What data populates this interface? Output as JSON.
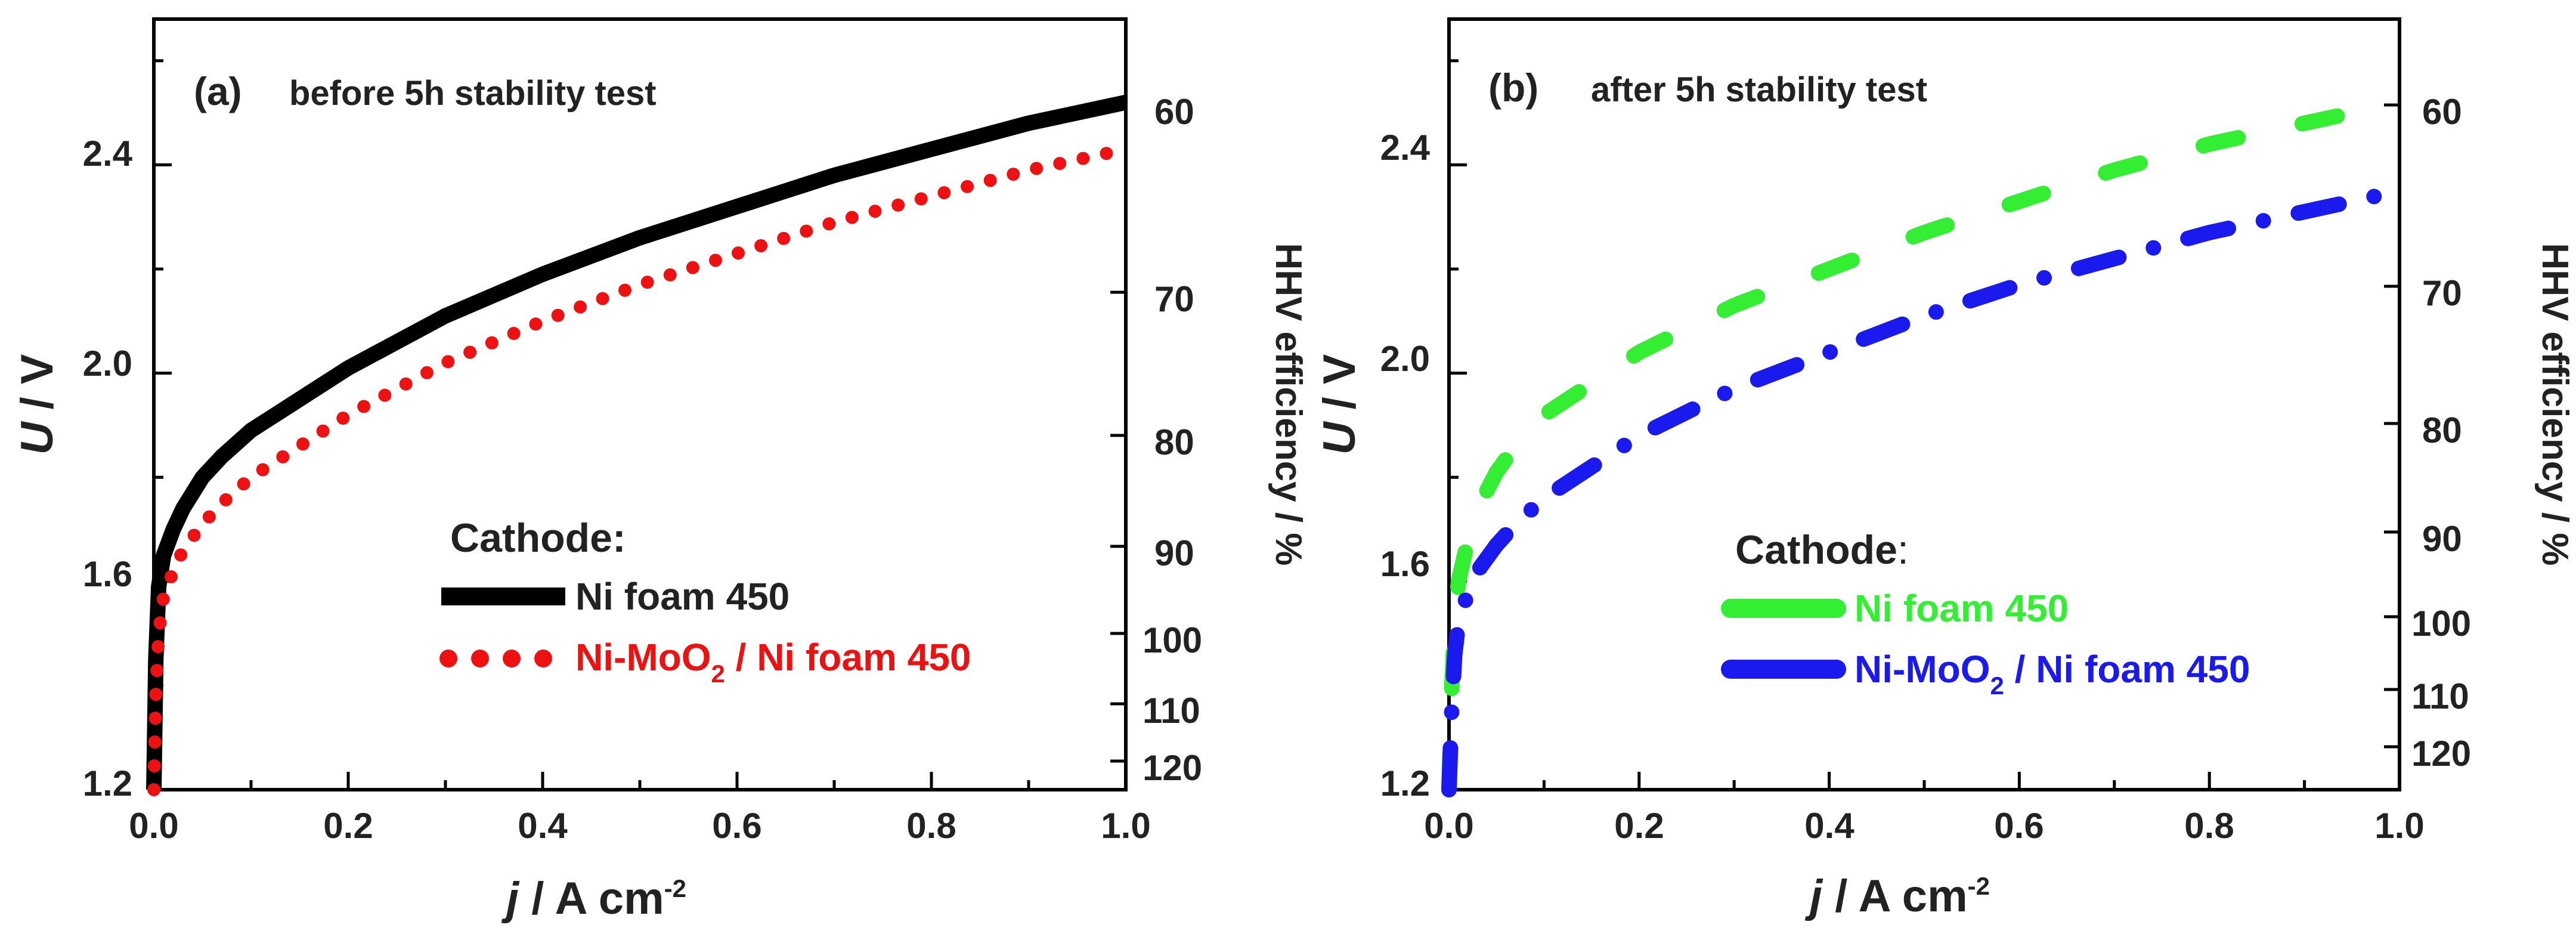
{
  "chart_data": [
    {
      "type": "line",
      "panel": "(a)",
      "title": "before 5h stability test",
      "xlabel": {
        "var": "j",
        "text": " / A cm",
        "exp": "-2"
      },
      "ylabel": {
        "var": "U",
        "text": " / V"
      },
      "y2label": "HHV efficiency  / %",
      "xlim": [
        0,
        1.0
      ],
      "ylim": [
        1.2,
        2.68
      ],
      "xticks": [
        "0.0",
        "0.2",
        "0.4",
        "0.6",
        "0.8",
        "1.0"
      ],
      "yticks": [
        "1.2",
        "1.6",
        "2.0",
        "2.4"
      ],
      "y2ticks": [
        "60",
        "70",
        "80",
        "90",
        "100",
        "110",
        "120"
      ],
      "legend": {
        "title": "Cathode:",
        "position": "center-right",
        "entries": [
          {
            "label": "Ni foam 450"
          },
          {
            "label_main": "Ni-MoO",
            "label_sub": "2",
            "label_rest": " / Ni foam 450"
          }
        ]
      },
      "series": [
        {
          "name": "Ni foam 450",
          "color": "#000000",
          "style": "solid",
          "x": [
            0.0,
            0.002,
            0.005,
            0.01,
            0.02,
            0.03,
            0.05,
            0.07,
            0.1,
            0.15,
            0.2,
            0.3,
            0.4,
            0.5,
            0.6,
            0.7,
            0.8,
            0.9,
            1.0
          ],
          "y": [
            1.2,
            1.45,
            1.59,
            1.65,
            1.7,
            1.74,
            1.8,
            1.84,
            1.89,
            1.95,
            2.01,
            2.11,
            2.19,
            2.26,
            2.32,
            2.38,
            2.43,
            2.48,
            2.52
          ]
        },
        {
          "name": "Ni-MoO2 / Ni foam 450",
          "color": "#ee1111",
          "style": "dotted",
          "x": [
            0.0,
            0.002,
            0.005,
            0.01,
            0.02,
            0.03,
            0.05,
            0.07,
            0.1,
            0.15,
            0.2,
            0.3,
            0.4,
            0.5,
            0.6,
            0.7,
            0.8,
            0.9,
            1.0
          ],
          "y": [
            1.2,
            1.38,
            1.5,
            1.57,
            1.62,
            1.66,
            1.71,
            1.75,
            1.8,
            1.86,
            1.92,
            2.02,
            2.1,
            2.17,
            2.23,
            2.29,
            2.34,
            2.39,
            2.43
          ]
        }
      ]
    },
    {
      "type": "line",
      "panel": "(b)",
      "title": "after 5h stability test",
      "xlabel": {
        "var": "j",
        "text": " / A cm",
        "exp": "-2"
      },
      "ylabel": {
        "var": "U",
        "text": " / V"
      },
      "y2label": "HHV efficiency / %",
      "xlim": [
        0,
        1.0
      ],
      "ylim": [
        1.2,
        2.68
      ],
      "xticks": [
        "0.0",
        "0.2",
        "0.4",
        "0.6",
        "0.8",
        "1.0"
      ],
      "yticks": [
        "1.2",
        "1.6",
        "2.0",
        "2.4"
      ],
      "y2ticks": [
        "60",
        "70",
        "80",
        "90",
        "100",
        "110",
        "120"
      ],
      "legend": {
        "title": "Cathode",
        "title_suffix": ":",
        "position": "center-right",
        "entries": [
          {
            "label": "Ni foam 450"
          },
          {
            "label_main": "Ni-MoO",
            "label_sub": "2",
            "label_rest": " / Ni foam 450"
          }
        ]
      },
      "series": [
        {
          "name": "Ni foam 450",
          "color": "#33ee33",
          "style": "dashed",
          "x": [
            0.0,
            0.003,
            0.006,
            0.01,
            0.02,
            0.03,
            0.05,
            0.07,
            0.1,
            0.15,
            0.2,
            0.3,
            0.4,
            0.5,
            0.6,
            0.7,
            0.8,
            0.9,
            1.0
          ],
          "y": [
            1.2,
            1.4,
            1.52,
            1.6,
            1.68,
            1.74,
            1.81,
            1.86,
            1.92,
            1.98,
            2.04,
            2.13,
            2.2,
            2.27,
            2.33,
            2.39,
            2.44,
            2.48,
            2.52
          ]
        },
        {
          "name": "Ni-MoO2 / Ni foam 450",
          "color": "#1a1aee",
          "style": "dashdot",
          "x": [
            0.0,
            0.003,
            0.006,
            0.01,
            0.02,
            0.03,
            0.05,
            0.07,
            0.1,
            0.15,
            0.2,
            0.3,
            0.4,
            0.5,
            0.6,
            0.7,
            0.8,
            0.9,
            1.0
          ],
          "y": [
            1.2,
            1.36,
            1.46,
            1.52,
            1.58,
            1.62,
            1.67,
            1.71,
            1.76,
            1.82,
            1.88,
            1.97,
            2.04,
            2.11,
            2.17,
            2.22,
            2.27,
            2.31,
            2.35
          ]
        }
      ]
    }
  ]
}
